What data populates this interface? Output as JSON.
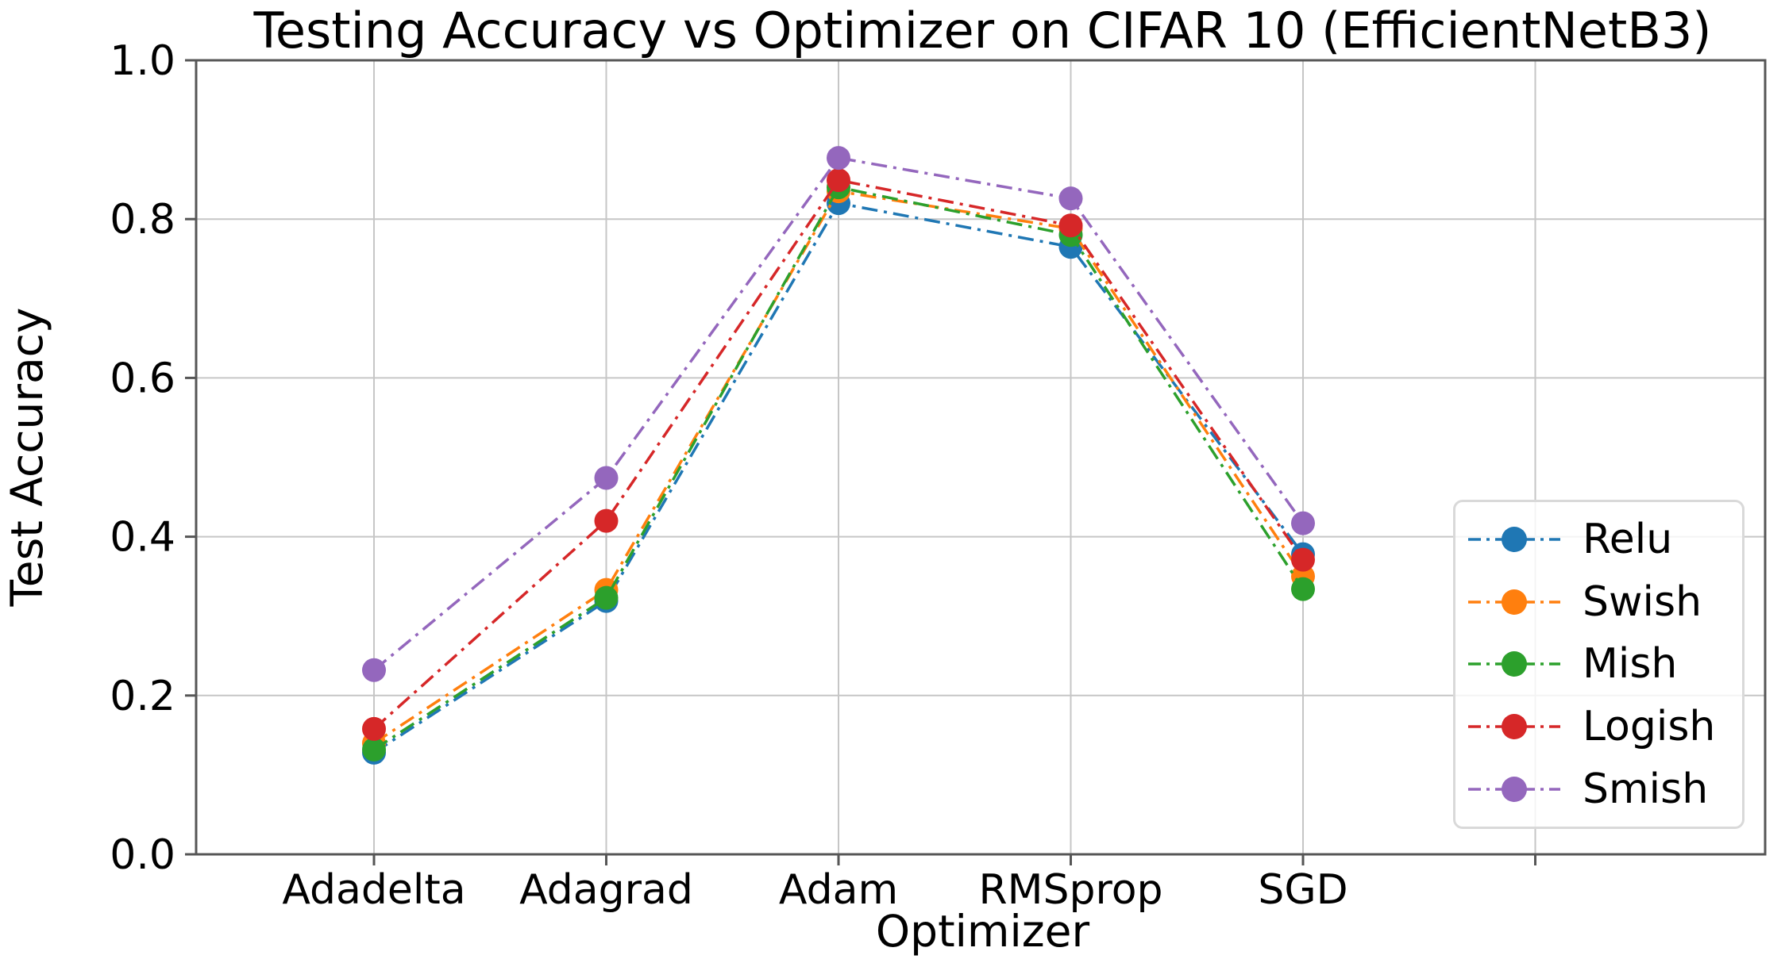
{
  "chart_data": {
    "type": "line",
    "title": "Testing Accuracy vs Optimizer on CIFAR 10 (EfficientNetB3)",
    "xlabel": "Optimizer",
    "ylabel": "Test Accuracy",
    "categories": [
      "Adadelta",
      "Adagrad",
      "Adam",
      "RMSprop",
      "SGD"
    ],
    "ylim": [
      0.0,
      1.0
    ],
    "yticks": [
      0.0,
      0.2,
      0.4,
      0.6,
      0.8,
      1.0
    ],
    "ytick_labels": [
      "0.0",
      "0.2",
      "0.4",
      "0.6",
      "0.8",
      "1.0"
    ],
    "grid": true,
    "n_x_gridlines": 6,
    "line_style": "dash-dot",
    "marker": "circle",
    "legend_position": "center right",
    "series": [
      {
        "name": "Relu",
        "color": "#1f77b4",
        "values": [
          0.128,
          0.319,
          0.82,
          0.765,
          0.378
        ]
      },
      {
        "name": "Swish",
        "color": "#ff7f0e",
        "values": [
          0.14,
          0.333,
          0.835,
          0.788,
          0.35
        ]
      },
      {
        "name": "Mish",
        "color": "#2ca02c",
        "values": [
          0.132,
          0.323,
          0.84,
          0.78,
          0.334
        ]
      },
      {
        "name": "Logish",
        "color": "#d62728",
        "values": [
          0.158,
          0.42,
          0.849,
          0.792,
          0.371
        ]
      },
      {
        "name": "Smish",
        "color": "#9467bd",
        "values": [
          0.232,
          0.474,
          0.877,
          0.826,
          0.417
        ]
      }
    ],
    "colors": {
      "grid": "#c6c6c6",
      "spine": "#565656",
      "text": "#000000",
      "legend_border": "#d9d9d9"
    }
  }
}
